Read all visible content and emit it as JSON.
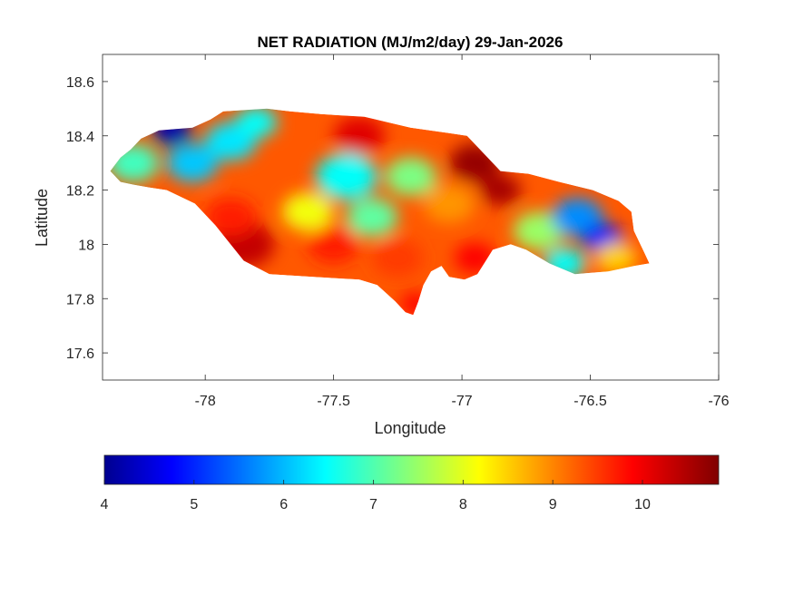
{
  "chart_data": {
    "type": "heatmap",
    "title": "NET RADIATION (MJ/m2/day) 29-Jan-2026",
    "xlabel": "Longitude",
    "ylabel": "Latitude",
    "xlim": [
      -78.4,
      -76
    ],
    "ylim": [
      17.5,
      18.7
    ],
    "x_ticks": [
      "-78",
      "-77.5",
      "-77",
      "-76.5",
      "-76"
    ],
    "x_tick_values": [
      -78,
      -77.5,
      -77,
      -76.5,
      -76
    ],
    "y_ticks": [
      "17.6",
      "17.8",
      "18",
      "18.2",
      "18.4",
      "18.6"
    ],
    "y_tick_values": [
      17.6,
      17.8,
      18,
      18.2,
      18.4,
      18.6
    ],
    "colorbar": {
      "colormap": "jet",
      "range": [
        4,
        10.85
      ],
      "ticks": [
        "4",
        "5",
        "6",
        "7",
        "8",
        "9",
        "10"
      ],
      "tick_values": [
        4,
        5,
        6,
        7,
        8,
        9,
        10
      ],
      "placement": "bottom"
    },
    "region": "Jamaica",
    "outline": [
      [
        -78.37,
        18.27
      ],
      [
        -78.33,
        18.32
      ],
      [
        -78.29,
        18.35
      ],
      [
        -78.25,
        18.39
      ],
      [
        -78.18,
        18.42
      ],
      [
        -78.05,
        18.43
      ],
      [
        -77.98,
        18.46
      ],
      [
        -77.93,
        18.49
      ],
      [
        -77.76,
        18.5
      ],
      [
        -77.67,
        18.49
      ],
      [
        -77.55,
        18.48
      ],
      [
        -77.38,
        18.47
      ],
      [
        -77.2,
        18.43
      ],
      [
        -77.05,
        18.41
      ],
      [
        -76.98,
        18.4
      ],
      [
        -76.92,
        18.34
      ],
      [
        -76.85,
        18.27
      ],
      [
        -76.74,
        18.26
      ],
      [
        -76.62,
        18.23
      ],
      [
        -76.49,
        18.2
      ],
      [
        -76.39,
        18.16
      ],
      [
        -76.34,
        18.12
      ],
      [
        -76.33,
        18.05
      ],
      [
        -76.29,
        17.97
      ],
      [
        -76.27,
        17.93
      ],
      [
        -76.33,
        17.92
      ],
      [
        -76.43,
        17.9
      ],
      [
        -76.56,
        17.89
      ],
      [
        -76.66,
        17.93
      ],
      [
        -76.75,
        17.98
      ],
      [
        -76.81,
        18.0
      ],
      [
        -76.88,
        17.98
      ],
      [
        -76.94,
        17.89
      ],
      [
        -76.99,
        17.87
      ],
      [
        -77.05,
        17.88
      ],
      [
        -77.08,
        17.92
      ],
      [
        -77.12,
        17.9
      ],
      [
        -77.15,
        17.85
      ],
      [
        -77.17,
        17.79
      ],
      [
        -77.19,
        17.74
      ],
      [
        -77.22,
        17.75
      ],
      [
        -77.26,
        17.79
      ],
      [
        -77.33,
        17.85
      ],
      [
        -77.4,
        17.87
      ],
      [
        -77.58,
        17.88
      ],
      [
        -77.75,
        17.89
      ],
      [
        -77.85,
        17.94
      ],
      [
        -77.96,
        18.07
      ],
      [
        -78.04,
        18.15
      ],
      [
        -78.15,
        18.2
      ],
      [
        -78.22,
        18.21
      ],
      [
        -78.28,
        18.22
      ],
      [
        -78.33,
        18.23
      ],
      [
        -78.37,
        18.27
      ]
    ],
    "hotspots": [
      {
        "lon": -78.13,
        "lat": 18.42,
        "value": 4.3,
        "r": 0.08
      },
      {
        "lon": -78.05,
        "lat": 18.3,
        "value": 6.2,
        "r": 0.1
      },
      {
        "lon": -78.28,
        "lat": 18.3,
        "value": 7.0,
        "r": 0.1
      },
      {
        "lon": -77.9,
        "lat": 18.38,
        "value": 6.4,
        "r": 0.1
      },
      {
        "lon": -77.8,
        "lat": 18.45,
        "value": 6.6,
        "r": 0.08
      },
      {
        "lon": -77.85,
        "lat": 18.0,
        "value": 10.4,
        "r": 0.12
      },
      {
        "lon": -77.9,
        "lat": 18.1,
        "value": 9.8,
        "r": 0.1
      },
      {
        "lon": -77.6,
        "lat": 18.12,
        "value": 8.2,
        "r": 0.1
      },
      {
        "lon": -77.5,
        "lat": 18.0,
        "value": 9.8,
        "r": 0.1
      },
      {
        "lon": -77.45,
        "lat": 18.25,
        "value": 6.6,
        "r": 0.12
      },
      {
        "lon": -77.35,
        "lat": 18.1,
        "value": 7.2,
        "r": 0.1
      },
      {
        "lon": -77.25,
        "lat": 17.95,
        "value": 9.6,
        "r": 0.1
      },
      {
        "lon": -77.2,
        "lat": 18.25,
        "value": 7.4,
        "r": 0.1
      },
      {
        "lon": -77.4,
        "lat": 18.4,
        "value": 10.2,
        "r": 0.1
      },
      {
        "lon": -77.05,
        "lat": 18.15,
        "value": 9.0,
        "r": 0.1
      },
      {
        "lon": -76.95,
        "lat": 18.3,
        "value": 10.7,
        "r": 0.1
      },
      {
        "lon": -76.85,
        "lat": 18.2,
        "value": 10.6,
        "r": 0.08
      },
      {
        "lon": -76.95,
        "lat": 17.95,
        "value": 10.0,
        "r": 0.08
      },
      {
        "lon": -76.7,
        "lat": 18.05,
        "value": 7.6,
        "r": 0.1
      },
      {
        "lon": -76.55,
        "lat": 18.1,
        "value": 5.8,
        "r": 0.1
      },
      {
        "lon": -76.45,
        "lat": 18.02,
        "value": 4.8,
        "r": 0.08
      },
      {
        "lon": -76.4,
        "lat": 17.95,
        "value": 8.6,
        "r": 0.08
      },
      {
        "lon": -76.6,
        "lat": 17.93,
        "value": 6.6,
        "r": 0.08
      },
      {
        "lon": -77.18,
        "lat": 17.78,
        "value": 10.0,
        "r": 0.06
      }
    ],
    "base_value": 9.4
  }
}
